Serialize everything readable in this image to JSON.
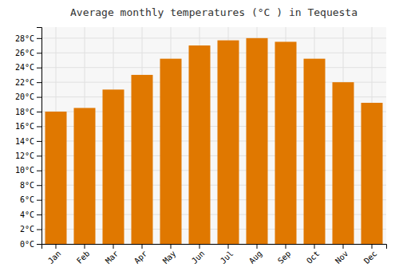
{
  "chart_data": {
    "type": "bar",
    "title": "Average monthly temperatures (°C ) in Tequesta",
    "categories": [
      "Jan",
      "Feb",
      "Mar",
      "Apr",
      "May",
      "Jun",
      "Jul",
      "Aug",
      "Sep",
      "Oct",
      "Nov",
      "Dec"
    ],
    "values": [
      18.0,
      18.5,
      21.0,
      23.0,
      25.2,
      27.0,
      27.7,
      28.0,
      27.5,
      25.2,
      22.0,
      19.2
    ],
    "color": "#E07800",
    "ylim": [
      0,
      29.5
    ],
    "yticks": [
      {
        "value": 0,
        "label": "0°C"
      },
      {
        "value": 2,
        "label": "2°C"
      },
      {
        "value": 4,
        "label": "4°C"
      },
      {
        "value": 6,
        "label": "6°C"
      },
      {
        "value": 8,
        "label": "8°C"
      },
      {
        "value": 10,
        "label": "10°C"
      },
      {
        "value": 12,
        "label": "12°C"
      },
      {
        "value": 14,
        "label": "14°C"
      },
      {
        "value": 16,
        "label": "16°C"
      },
      {
        "value": 18,
        "label": "18°C"
      },
      {
        "value": 20,
        "label": "20°C"
      },
      {
        "value": 22,
        "label": "22°C"
      },
      {
        "value": 24,
        "label": "24°C"
      },
      {
        "value": 26,
        "label": "26°C"
      },
      {
        "value": 28,
        "label": "28°C"
      }
    ],
    "grid": true
  }
}
